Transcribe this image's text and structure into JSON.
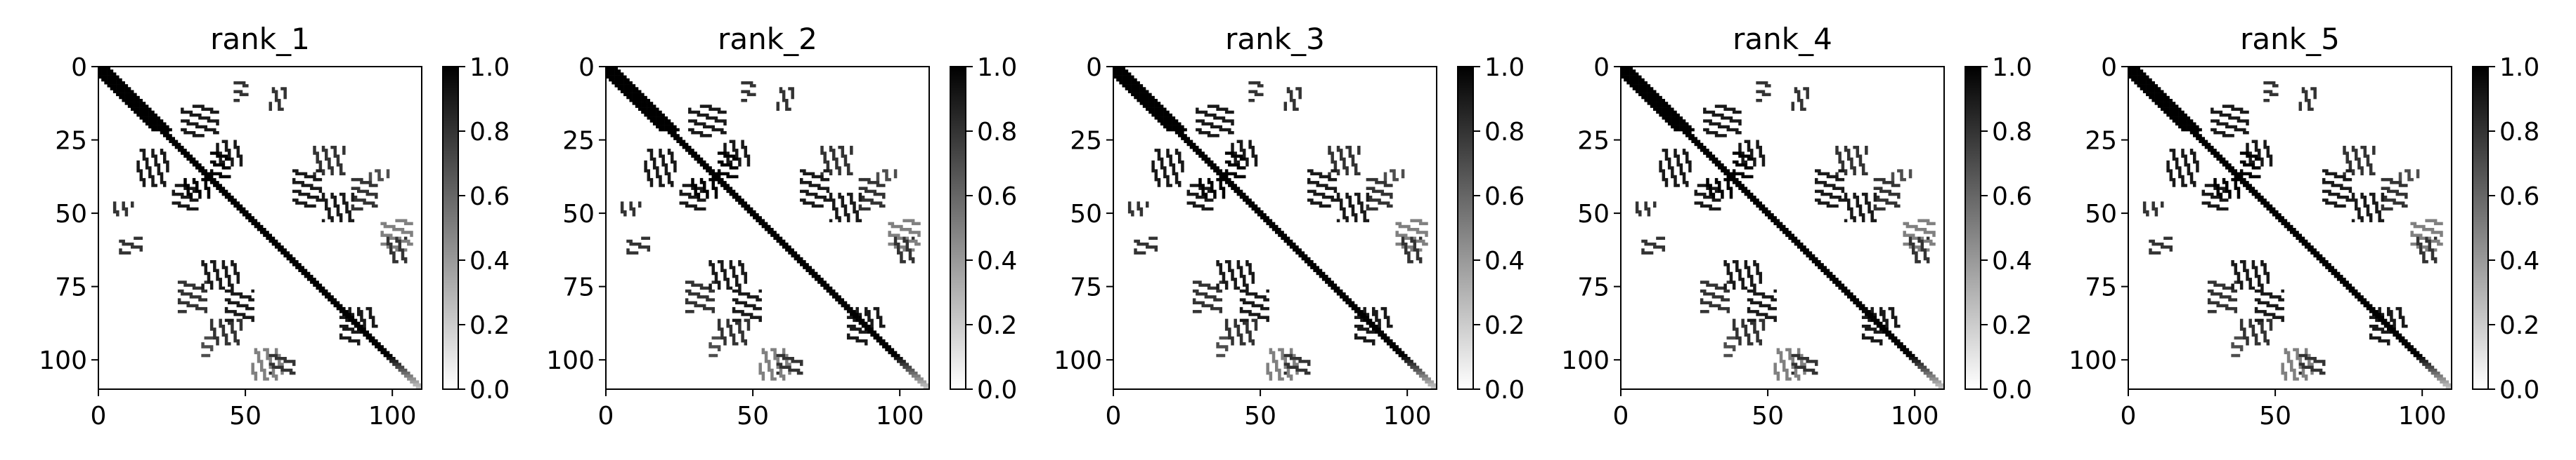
{
  "chart_data": {
    "type": "heatmap",
    "panels": [
      {
        "title": "rank_1"
      },
      {
        "title": "rank_2"
      },
      {
        "title": "rank_3"
      },
      {
        "title": "rank_4"
      },
      {
        "title": "rank_5"
      }
    ],
    "matrix_size": 110,
    "x_ticks": [
      "0",
      "50",
      "100"
    ],
    "x_tick_values": [
      0,
      50,
      100
    ],
    "y_ticks": [
      "0",
      "25",
      "50",
      "75",
      "100"
    ],
    "y_tick_values": [
      0,
      25,
      50,
      75,
      100
    ],
    "xlim": [
      0,
      110
    ],
    "ylim": [
      110,
      0
    ],
    "colorbar": {
      "ticks": [
        "0.0",
        "0.2",
        "0.4",
        "0.6",
        "0.8",
        "1.0"
      ],
      "tick_values": [
        0.0,
        0.2,
        0.4,
        0.6,
        0.8,
        1.0
      ],
      "range": [
        0.0,
        1.0
      ],
      "colormap": "greys"
    },
    "diagonal_band": {
      "start": 0,
      "end": 110,
      "value": 1.0,
      "fade_after": 98
    },
    "contact_clusters": [
      {
        "i_range": [
          29,
          37
        ],
        "j_range": [
          38,
          44
        ],
        "value": 1.0
      },
      {
        "i_range": [
          13,
          23
        ],
        "j_range": [
          28,
          40
        ],
        "value": 0.9
      },
      {
        "i_range": [
          40,
          48
        ],
        "j_range": [
          25,
          33
        ],
        "value": 0.9
      },
      {
        "i_range": [
          35,
          47
        ],
        "j_range": [
          66,
          75
        ],
        "value": 0.9
      },
      {
        "i_range": [
          38,
          48
        ],
        "j_range": [
          86,
          94
        ],
        "value": 0.8
      },
      {
        "i_range": [
          52,
          62
        ],
        "j_range": [
          96,
          106
        ],
        "value": 0.5
      },
      {
        "i_range": [
          58,
          63
        ],
        "j_range": [
          7,
          14
        ],
        "value": 0.8
      },
      {
        "i_range": [
          5,
          11
        ],
        "j_range": [
          46,
          50
        ],
        "value": 0.8
      },
      {
        "i_range": [
          76,
          86
        ],
        "j_range": [
          43,
          52
        ],
        "value": 0.9
      },
      {
        "i_range": [
          73,
          83
        ],
        "j_range": [
          27,
          36
        ],
        "value": 0.8
      },
      {
        "i_range": [
          92,
          98
        ],
        "j_range": [
          35,
          38
        ],
        "value": 0.7
      },
      {
        "i_range": [
          98,
          104
        ],
        "j_range": [
          58,
          66
        ],
        "value": 0.8
      },
      {
        "i_range": [
          84,
          94
        ],
        "j_range": [
          82,
          88
        ],
        "value": 0.9
      }
    ]
  }
}
